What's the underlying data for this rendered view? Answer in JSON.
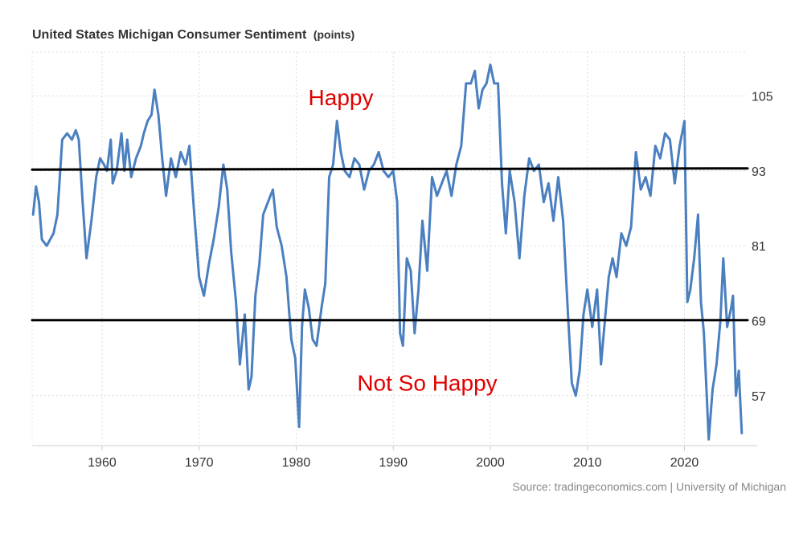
{
  "chart_data": {
    "type": "line",
    "title": "United States Michigan Consumer Sentiment",
    "unit": "(points)",
    "source": "Source: tradingeconomics.com | University of Michigan",
    "xlim": [
      1952.8,
      2026.5
    ],
    "ylim": [
      49,
      112
    ],
    "x_ticks": [
      "1960",
      "1970",
      "1980",
      "1990",
      "2000",
      "2010",
      "2020"
    ],
    "y_ticks": [
      "105",
      "93",
      "81",
      "69",
      "57"
    ],
    "grid": true,
    "annotations": [
      "Happy",
      "Not So Happy"
    ],
    "reference_lines": [
      93,
      69
    ],
    "series": [
      {
        "color": "#4a7fc0",
        "points": [
          [
            1952.9,
            86
          ],
          [
            1953.2,
            90.5
          ],
          [
            1953.5,
            88
          ],
          [
            1953.8,
            82
          ],
          [
            1954.3,
            81
          ],
          [
            1955.0,
            83
          ],
          [
            1955.4,
            86
          ],
          [
            1955.9,
            98
          ],
          [
            1956.4,
            99
          ],
          [
            1956.9,
            98
          ],
          [
            1957.3,
            99.5
          ],
          [
            1957.6,
            98
          ],
          [
            1958.0,
            88
          ],
          [
            1958.4,
            79
          ],
          [
            1958.9,
            85
          ],
          [
            1959.4,
            92
          ],
          [
            1959.8,
            95
          ],
          [
            1960.2,
            94
          ],
          [
            1960.5,
            93
          ],
          [
            1960.9,
            98
          ],
          [
            1961.1,
            91
          ],
          [
            1961.5,
            93
          ],
          [
            1962.0,
            99
          ],
          [
            1962.3,
            93
          ],
          [
            1962.6,
            98
          ],
          [
            1963.0,
            92
          ],
          [
            1963.5,
            95
          ],
          [
            1964.0,
            97
          ],
          [
            1964.3,
            99
          ],
          [
            1964.7,
            101
          ],
          [
            1965.1,
            102
          ],
          [
            1965.4,
            106
          ],
          [
            1965.8,
            102
          ],
          [
            1966.2,
            95
          ],
          [
            1966.6,
            89
          ],
          [
            1967.1,
            95
          ],
          [
            1967.6,
            92
          ],
          [
            1968.1,
            96
          ],
          [
            1968.6,
            94
          ],
          [
            1969.0,
            97
          ],
          [
            1969.5,
            86
          ],
          [
            1970.0,
            76
          ],
          [
            1970.5,
            73
          ],
          [
            1971.0,
            78
          ],
          [
            1971.5,
            82
          ],
          [
            1972.0,
            87
          ],
          [
            1972.5,
            94
          ],
          [
            1972.9,
            90
          ],
          [
            1973.3,
            80
          ],
          [
            1973.8,
            72
          ],
          [
            1974.2,
            62
          ],
          [
            1974.7,
            70
          ],
          [
            1975.1,
            58
          ],
          [
            1975.4,
            60
          ],
          [
            1975.8,
            73
          ],
          [
            1976.2,
            78
          ],
          [
            1976.6,
            86
          ],
          [
            1977.1,
            88
          ],
          [
            1977.6,
            90
          ],
          [
            1978.0,
            84
          ],
          [
            1978.5,
            81
          ],
          [
            1979.0,
            76
          ],
          [
            1979.5,
            66
          ],
          [
            1979.9,
            63
          ],
          [
            1980.3,
            52
          ],
          [
            1980.6,
            68
          ],
          [
            1980.9,
            74
          ],
          [
            1981.3,
            71
          ],
          [
            1981.7,
            66
          ],
          [
            1982.1,
            65
          ],
          [
            1982.6,
            71
          ],
          [
            1983.0,
            75
          ],
          [
            1983.4,
            92
          ],
          [
            1983.8,
            94
          ],
          [
            1984.2,
            101
          ],
          [
            1984.6,
            96
          ],
          [
            1985.0,
            93
          ],
          [
            1985.5,
            92
          ],
          [
            1986.0,
            95
          ],
          [
            1986.5,
            94
          ],
          [
            1987.0,
            90
          ],
          [
            1987.5,
            93
          ],
          [
            1988.0,
            94
          ],
          [
            1988.5,
            96
          ],
          [
            1989.0,
            93
          ],
          [
            1989.5,
            92
          ],
          [
            1990.0,
            93
          ],
          [
            1990.4,
            88
          ],
          [
            1990.7,
            67
          ],
          [
            1991.0,
            65
          ],
          [
            1991.4,
            79
          ],
          [
            1991.8,
            77
          ],
          [
            1992.2,
            67
          ],
          [
            1992.6,
            74
          ],
          [
            1993.0,
            85
          ],
          [
            1993.5,
            77
          ],
          [
            1994.0,
            92
          ],
          [
            1994.5,
            89
          ],
          [
            1995.0,
            91
          ],
          [
            1995.5,
            93
          ],
          [
            1996.0,
            89
          ],
          [
            1996.5,
            94
          ],
          [
            1997.0,
            97
          ],
          [
            1997.5,
            107
          ],
          [
            1998.0,
            107
          ],
          [
            1998.4,
            109
          ],
          [
            1998.8,
            103
          ],
          [
            1999.2,
            106
          ],
          [
            1999.6,
            107
          ],
          [
            2000.0,
            110
          ],
          [
            2000.4,
            107
          ],
          [
            2000.8,
            107
          ],
          [
            2001.2,
            91
          ],
          [
            2001.6,
            83
          ],
          [
            2002.0,
            93
          ],
          [
            2002.5,
            88
          ],
          [
            2003.0,
            79
          ],
          [
            2003.5,
            89
          ],
          [
            2004.0,
            95
          ],
          [
            2004.5,
            93
          ],
          [
            2005.0,
            94
          ],
          [
            2005.5,
            88
          ],
          [
            2006.0,
            91
          ],
          [
            2006.5,
            85
          ],
          [
            2007.0,
            92
          ],
          [
            2007.5,
            85
          ],
          [
            2008.0,
            70
          ],
          [
            2008.4,
            59
          ],
          [
            2008.8,
            57
          ],
          [
            2009.2,
            61
          ],
          [
            2009.6,
            70
          ],
          [
            2010.0,
            74
          ],
          [
            2010.5,
            68
          ],
          [
            2011.0,
            74
          ],
          [
            2011.4,
            62
          ],
          [
            2011.8,
            69
          ],
          [
            2012.2,
            76
          ],
          [
            2012.6,
            79
          ],
          [
            2013.0,
            76
          ],
          [
            2013.5,
            83
          ],
          [
            2014.0,
            81
          ],
          [
            2014.5,
            84
          ],
          [
            2015.0,
            96
          ],
          [
            2015.5,
            90
          ],
          [
            2016.0,
            92
          ],
          [
            2016.5,
            89
          ],
          [
            2017.0,
            97
          ],
          [
            2017.5,
            95
          ],
          [
            2018.0,
            99
          ],
          [
            2018.5,
            98
          ],
          [
            2019.0,
            91
          ],
          [
            2019.5,
            97
          ],
          [
            2020.0,
            101
          ],
          [
            2020.3,
            72
          ],
          [
            2020.6,
            74
          ],
          [
            2021.0,
            79
          ],
          [
            2021.4,
            86
          ],
          [
            2021.7,
            72
          ],
          [
            2022.0,
            67
          ],
          [
            2022.5,
            50
          ],
          [
            2022.9,
            58
          ],
          [
            2023.3,
            62
          ],
          [
            2023.7,
            69
          ],
          [
            2024.0,
            79
          ],
          [
            2024.4,
            68
          ],
          [
            2024.8,
            71
          ],
          [
            2025.0,
            73
          ],
          [
            2025.3,
            57
          ],
          [
            2025.6,
            61
          ],
          [
            2025.9,
            51
          ]
        ]
      },
      {
        "color": "#000000",
        "points": [
          [
            1952.8,
            93.2
          ],
          [
            2026.5,
            93.4
          ]
        ]
      },
      {
        "color": "#000000",
        "points": [
          [
            1952.8,
            69.1
          ],
          [
            2026.5,
            69.1
          ]
        ]
      }
    ]
  }
}
